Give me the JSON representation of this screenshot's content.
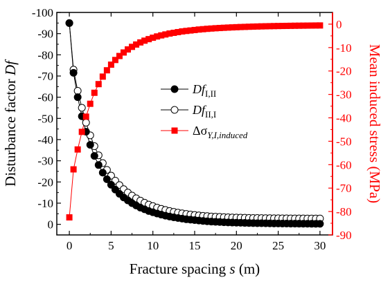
{
  "chart_data": {
    "type": "line",
    "xlabel": "Fracture spacing",
    "xlabel_var": "s",
    "xlabel_unit": "(m)",
    "ylabel_left": "Disturbance factor",
    "ylabel_left_var": "Df",
    "ylabel_right": "Mean induced stress (MPa)",
    "xlim": [
      -1.5,
      31.5
    ],
    "ylim_left": [
      -100,
      5
    ],
    "ylim_right": [
      -90,
      5
    ],
    "left_axis_reversed": true,
    "x_ticks": [
      0,
      5,
      10,
      15,
      20,
      25,
      30
    ],
    "y_left_ticks": [
      0,
      -10,
      -20,
      -30,
      -40,
      -50,
      -60,
      -70,
      -80,
      -90,
      -100
    ],
    "y_right_ticks": [
      0,
      -10,
      -20,
      -30,
      -40,
      -50,
      -60,
      -70,
      -80,
      -90
    ],
    "right_axis_color": "#ff0000",
    "grid": false,
    "legend_position": "center-right",
    "legend": [
      {
        "base": "Df",
        "sub": "I,II",
        "marker": "filled-circle",
        "color": "#000000"
      },
      {
        "base": "Df",
        "sub": "II,I",
        "marker": "open-circle",
        "color": "#000000"
      },
      {
        "base": "Δσ",
        "sub": "Y,I,induced",
        "marker": "filled-square",
        "color": "#ff0000"
      }
    ],
    "x": [
      0,
      0.5,
      1,
      1.5,
      2,
      2.5,
      3,
      3.5,
      4,
      4.5,
      5,
      5.5,
      6,
      6.5,
      7,
      7.5,
      8,
      8.5,
      9,
      9.5,
      10,
      10.5,
      11,
      11.5,
      12,
      12.5,
      13,
      13.5,
      14,
      14.5,
      15,
      15.5,
      16,
      16.5,
      17,
      17.5,
      18,
      18.5,
      19,
      19.5,
      20,
      20.5,
      21,
      21.5,
      22,
      22.5,
      23,
      23.5,
      24,
      24.5,
      25,
      25.5,
      26,
      26.5,
      27,
      27.5,
      28,
      28.5,
      29,
      29.5,
      30
    ],
    "series": [
      {
        "name": "Df I,II",
        "axis": "left",
        "values": [
          -95,
          -71.5,
          -60,
          -51,
          -43.7,
          -37.5,
          -32.3,
          -28,
          -24.4,
          -21.3,
          -18.7,
          -16.4,
          -14.4,
          -12.7,
          -11.3,
          -10,
          -8.9,
          -7.9,
          -7.1,
          -6.3,
          -5.7,
          -5.1,
          -4.6,
          -4.1,
          -3.7,
          -3.3,
          -3,
          -2.7,
          -2.4,
          -2.2,
          -2,
          -1.8,
          -1.6,
          -1.45,
          -1.3,
          -1.2,
          -1.1,
          -1,
          -0.9,
          -0.85,
          -0.8,
          -0.74,
          -0.69,
          -0.64,
          -0.6,
          -0.56,
          -0.53,
          -0.5,
          -0.47,
          -0.44,
          -0.42,
          -0.4,
          -0.38,
          -0.36,
          -0.34,
          -0.32,
          -0.3,
          -0.29,
          -0.28,
          -0.27,
          -0.26
        ]
      },
      {
        "name": "Df II,I",
        "axis": "left",
        "values": [
          -95,
          -73,
          -63,
          -55,
          -48,
          -42,
          -36.9,
          -32.6,
          -28.9,
          -25.7,
          -23,
          -20.6,
          -18.5,
          -16.6,
          -15,
          -13.6,
          -12.3,
          -11.2,
          -10.2,
          -9.3,
          -8.6,
          -7.9,
          -7.3,
          -6.8,
          -6.3,
          -5.9,
          -5.5,
          -5.2,
          -4.9,
          -4.6,
          -4.4,
          -4.2,
          -4,
          -3.9,
          -3.7,
          -3.6,
          -3.5,
          -3.4,
          -3.3,
          -3.25,
          -3.2,
          -3.15,
          -3.1,
          -3.05,
          -3,
          -2.98,
          -2.95,
          -2.92,
          -2.9,
          -2.88,
          -2.86,
          -2.84,
          -2.82,
          -2.8,
          -2.79,
          -2.78,
          -2.77,
          -2.76,
          -2.75,
          -2.75,
          -2.75
        ]
      },
      {
        "name": "Δσ Y,I,induced",
        "axis": "right",
        "values": [
          -82.5,
          -62,
          -53.5,
          -46,
          -39.5,
          -34,
          -29.3,
          -25.6,
          -22.4,
          -19.7,
          -17.3,
          -15.3,
          -13.6,
          -12.1,
          -10.8,
          -9.7,
          -8.7,
          -7.8,
          -7.05,
          -6.4,
          -5.8,
          -5.25,
          -4.8,
          -4.4,
          -4,
          -3.7,
          -3.4,
          -3.1,
          -2.9,
          -2.7,
          -2.5,
          -2.3,
          -2.15,
          -2,
          -1.87,
          -1.75,
          -1.65,
          -1.55,
          -1.46,
          -1.38,
          -1.3,
          -1.23,
          -1.17,
          -1.11,
          -1.05,
          -1,
          -0.95,
          -0.91,
          -0.87,
          -0.83,
          -0.8,
          -0.77,
          -0.74,
          -0.71,
          -0.68,
          -0.66,
          -0.64,
          -0.62,
          -0.6,
          -0.58,
          -0.56
        ]
      }
    ]
  }
}
